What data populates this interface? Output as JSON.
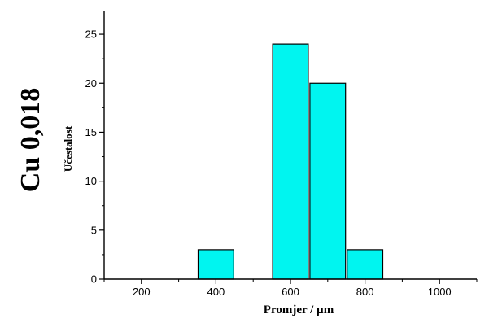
{
  "side_label": "Cu 0,018",
  "chart_data": {
    "type": "bar",
    "title": "",
    "xlabel": "Promjer / µm",
    "ylabel": "Učestalost",
    "x_ticks": [
      200,
      400,
      600,
      800,
      1000
    ],
    "y_ticks": [
      0,
      5,
      10,
      15,
      20,
      25
    ],
    "xlim": [
      100,
      1100
    ],
    "ylim": [
      0,
      27
    ],
    "bar_width": 100,
    "categories": [
      400,
      600,
      700,
      800
    ],
    "values": [
      3,
      24,
      20,
      3
    ],
    "bar_color": "#00f5f0",
    "grid": false,
    "legend": "none"
  }
}
